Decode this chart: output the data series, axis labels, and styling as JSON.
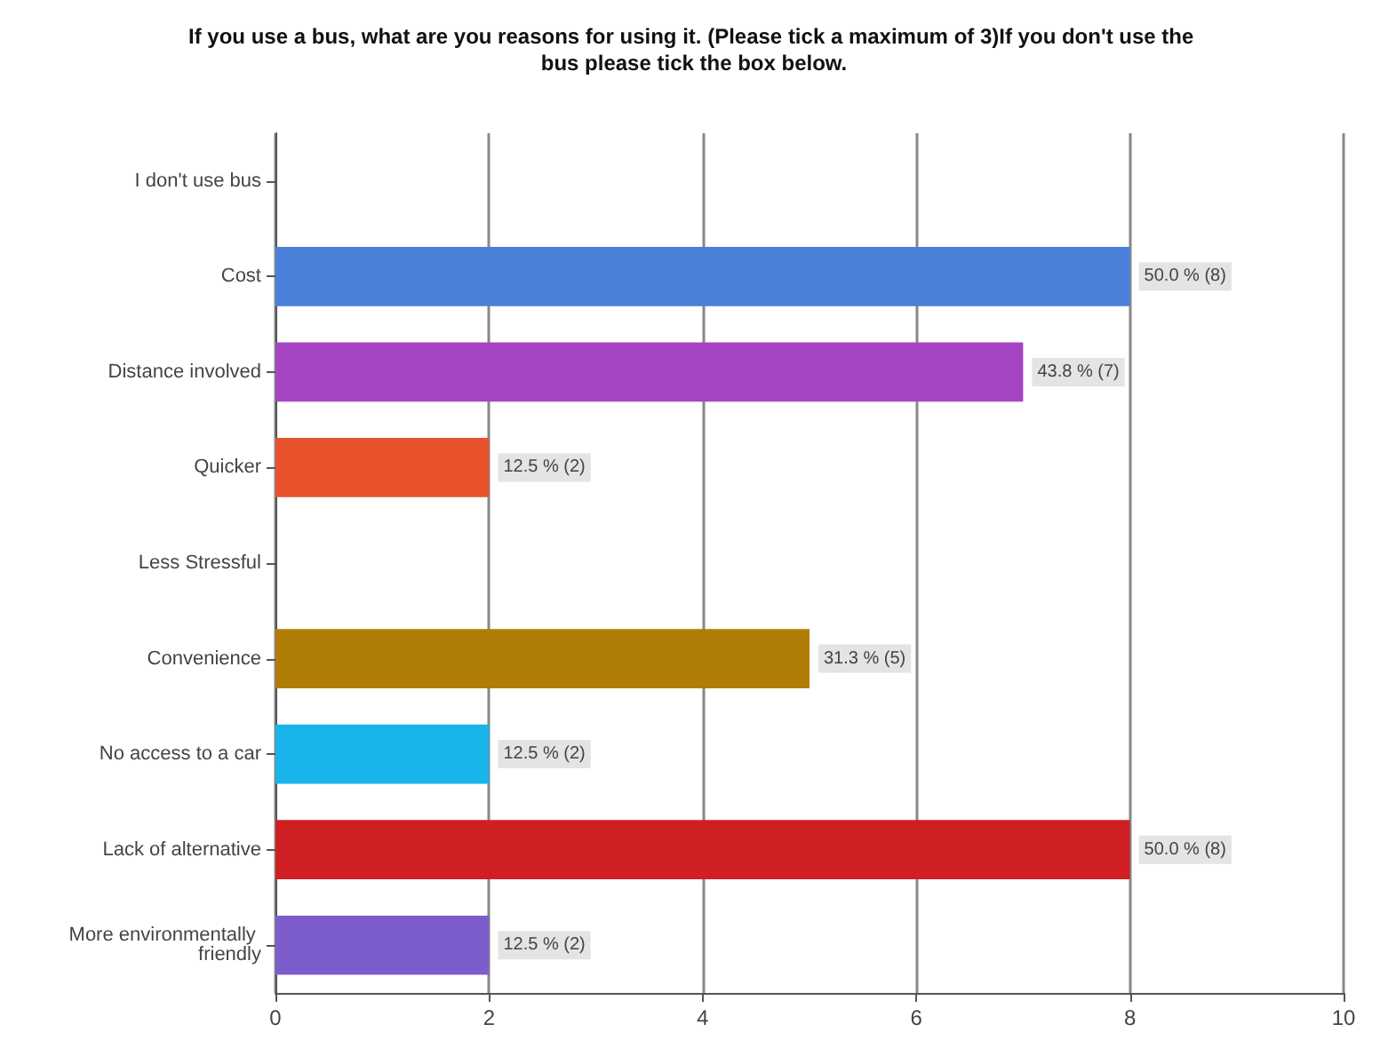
{
  "chart_data": {
    "type": "bar",
    "orientation": "horizontal",
    "title": "If you use a bus, what are you reasons for using it. (Please tick a maximum of 3)If you don't use the bus please tick the box below.",
    "categories": [
      "I don't use bus",
      "Cost",
      "Distance involved",
      "Quicker",
      "Less Stressful",
      "Convenience",
      "No access to a car",
      "Lack of alternative",
      "More environmentally friendly"
    ],
    "values": [
      0,
      8,
      7,
      2,
      0,
      5,
      2,
      8,
      2
    ],
    "colors": [
      "#4a80d9",
      "#4a80d9",
      "#a545c4",
      "#e8532e",
      "#e8532e",
      "#b07d05",
      "#18b4ea",
      "#d01f24",
      "#7d5ccc"
    ],
    "value_labels": [
      null,
      "50.0 % (8)",
      "43.8 % (7)",
      "12.5 % (2)",
      null,
      "31.3 % (5)",
      "12.5 % (2)",
      "50.0 % (8)",
      "12.5 % (2)"
    ],
    "xlim": [
      0,
      10
    ],
    "xticks": [
      0,
      2,
      4,
      6,
      8,
      10
    ],
    "grid": "x"
  }
}
